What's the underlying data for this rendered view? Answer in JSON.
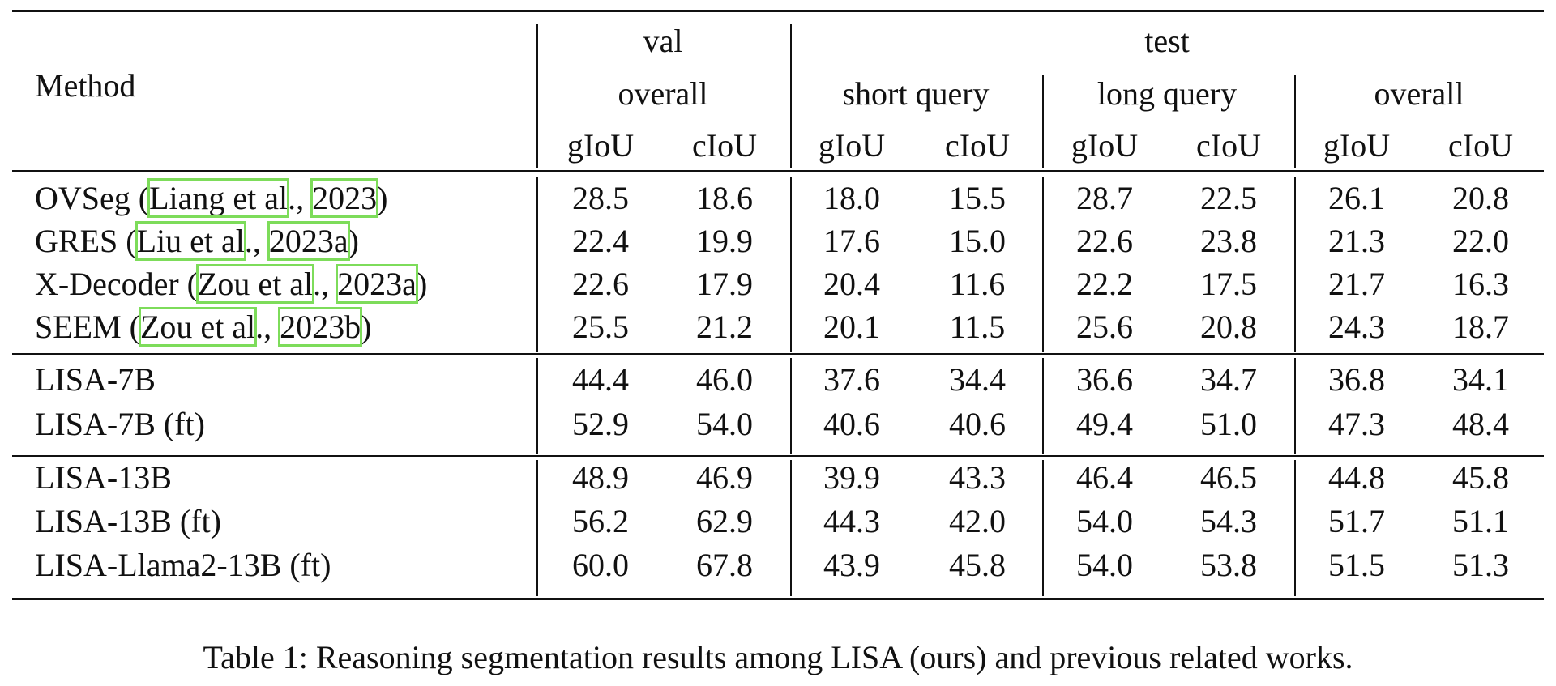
{
  "table": {
    "header": {
      "method": "Method",
      "top": [
        "val",
        "test"
      ],
      "mid": [
        "overall",
        "short query",
        "long query",
        "overall"
      ],
      "metrics": [
        "gIoU",
        "cIoU",
        "gIoU",
        "cIoU",
        "gIoU",
        "cIoU",
        "gIoU",
        "cIoU"
      ]
    },
    "sections": [
      [
        {
          "method": [
            {
              "text": "OVSeg ("
            },
            {
              "text": "Liang et al",
              "link": true
            },
            {
              "text": "., "
            },
            {
              "text": "2023",
              "link": true
            },
            {
              "text": ")"
            }
          ],
          "values": [
            "28.5",
            "18.6",
            "18.0",
            "15.5",
            "28.7",
            "22.5",
            "26.1",
            "20.8"
          ]
        },
        {
          "method": [
            {
              "text": "GRES ("
            },
            {
              "text": "Liu et al",
              "link": true
            },
            {
              "text": "., "
            },
            {
              "text": "2023a",
              "link": true
            },
            {
              "text": ")"
            }
          ],
          "values": [
            "22.4",
            "19.9",
            "17.6",
            "15.0",
            "22.6",
            "23.8",
            "21.3",
            "22.0"
          ]
        },
        {
          "method": [
            {
              "text": "X-Decoder ("
            },
            {
              "text": "Zou et al",
              "link": true
            },
            {
              "text": "., "
            },
            {
              "text": "2023a",
              "link": true
            },
            {
              "text": ")"
            }
          ],
          "values": [
            "22.6",
            "17.9",
            "20.4",
            "11.6",
            "22.2",
            "17.5",
            "21.7",
            "16.3"
          ]
        },
        {
          "method": [
            {
              "text": "SEEM ("
            },
            {
              "text": "Zou et al",
              "link": true
            },
            {
              "text": "., "
            },
            {
              "text": "2023b",
              "link": true
            },
            {
              "text": ")"
            }
          ],
          "values": [
            "25.5",
            "21.2",
            "20.1",
            "11.5",
            "25.6",
            "20.8",
            "24.3",
            "18.7"
          ]
        }
      ],
      [
        {
          "method": [
            {
              "text": "LISA-7B"
            }
          ],
          "values": [
            "44.4",
            "46.0",
            "37.6",
            "34.4",
            "36.6",
            "34.7",
            "36.8",
            "34.1"
          ]
        },
        {
          "method": [
            {
              "text": "LISA-7B (ft)"
            }
          ],
          "values": [
            "52.9",
            "54.0",
            "40.6",
            "40.6",
            "49.4",
            "51.0",
            "47.3",
            "48.4"
          ]
        }
      ],
      [
        {
          "method": [
            {
              "text": "LISA-13B"
            }
          ],
          "values": [
            "48.9",
            "46.9",
            "39.9",
            "43.3",
            "46.4",
            "46.5",
            "44.8",
            "45.8"
          ]
        },
        {
          "method": [
            {
              "text": "LISA-13B (ft)"
            }
          ],
          "values": [
            "56.2",
            "62.9",
            "44.3",
            "42.0",
            "54.0",
            "54.3",
            "51.7",
            "51.1"
          ]
        },
        {
          "method": [
            {
              "text": "LISA-Llama2-13B (ft)"
            }
          ],
          "values": [
            "60.0",
            "67.8",
            "43.9",
            "45.8",
            "54.0",
            "53.8",
            "51.5",
            "51.3"
          ]
        }
      ]
    ]
  },
  "caption": "Table 1: Reasoning segmentation results among LISA (ours) and previous related works."
}
